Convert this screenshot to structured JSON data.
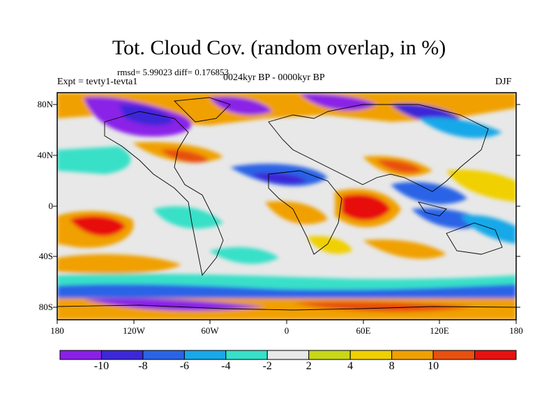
{
  "title": "Tot. Cloud Cov. (random overlap, in %)",
  "stats": "rmsd= 5.99023 diff= 0.176853",
  "experiment": "Expt = tevty1-tevta1",
  "period": "0024kyr BP - 0000kyr BP",
  "season": "DJF",
  "lat_labels": [
    "80N",
    "40N",
    "0",
    "40S",
    "80S"
  ],
  "lon_labels": [
    "180",
    "120W",
    "60W",
    "0",
    "60E",
    "120E",
    "180"
  ],
  "colorbar": {
    "labels": [
      "-10",
      "-8",
      "-6",
      "-4",
      "-2",
      "2",
      "4",
      "8",
      "10"
    ],
    "colors": [
      "#8a20e8",
      "#3c28d8",
      "#2a64e6",
      "#18a8e8",
      "#38e0c8",
      "#e8e8e8",
      "#c8d818",
      "#f0d000",
      "#f0a000",
      "#e85010",
      "#e81010"
    ]
  }
}
